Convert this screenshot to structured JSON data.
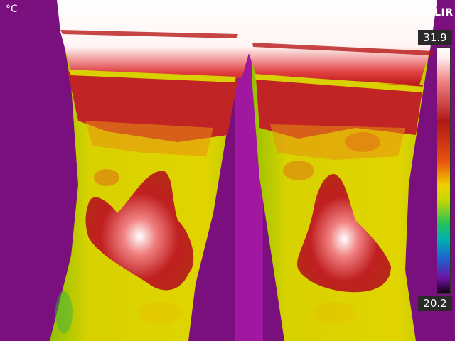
{
  "overlay": {
    "unit_label": "°C",
    "brand": "FLIR",
    "scale_max": "31.9",
    "scale_min": "20.2"
  },
  "colors": {
    "background": "#7a0f7e",
    "cool": "#d8d000",
    "warm": "#b81818",
    "hot": "#ffffff"
  },
  "icons": {
    "brand_mark": "flir-logo-icon"
  }
}
